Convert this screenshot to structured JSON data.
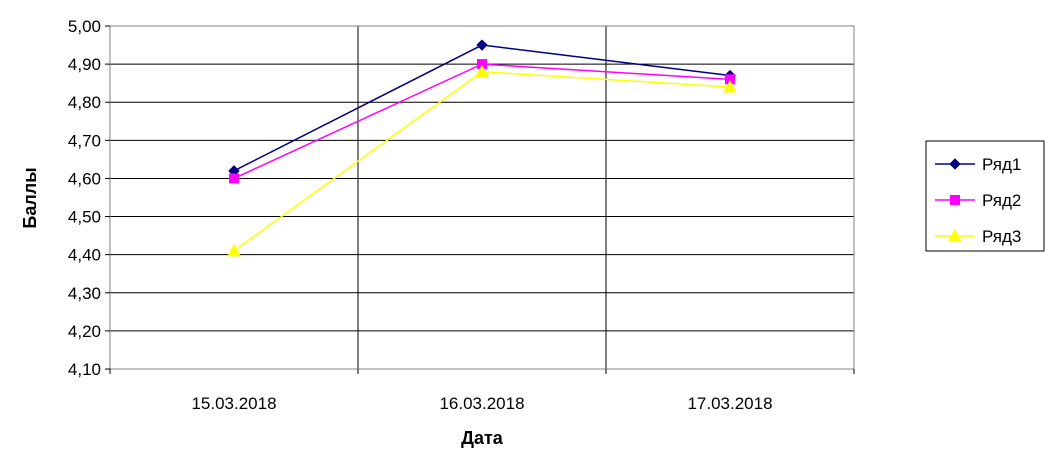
{
  "chart_data": {
    "type": "line",
    "categories": [
      "15.03.2018",
      "16.03.2018",
      "17.03.2018"
    ],
    "series": [
      {
        "name": "Ряд1",
        "values": [
          4.62,
          4.95,
          4.87
        ],
        "color": "#000080",
        "marker": "diamond"
      },
      {
        "name": "Ряд2",
        "values": [
          4.6,
          4.9,
          4.86
        ],
        "color": "#FF00FF",
        "marker": "square"
      },
      {
        "name": "Ряд3",
        "values": [
          4.41,
          4.88,
          4.84
        ],
        "color": "#FFFF00",
        "marker": "triangle"
      }
    ],
    "xlabel": "Дата",
    "ylabel": "Баллы",
    "ylim": [
      4.1,
      5.0
    ],
    "yticks": [
      "4,10",
      "4,20",
      "4,30",
      "4,40",
      "4,50",
      "4,60",
      "4,70",
      "4,80",
      "4,90",
      "5,00"
    ],
    "grid": true,
    "legend_position": "right"
  }
}
